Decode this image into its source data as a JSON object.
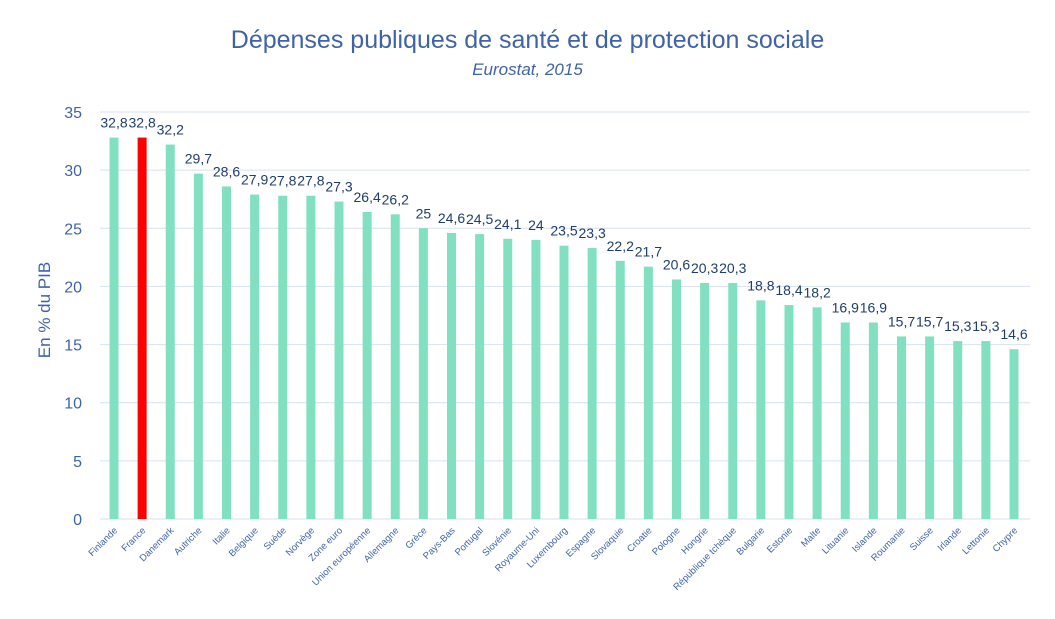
{
  "chart_data": {
    "type": "bar",
    "title": "Dépenses publiques de santé et de protection sociale",
    "subtitle": "Eurostat, 2015",
    "xlabel": "",
    "ylabel": "En % du PIB",
    "ylim": [
      0,
      35
    ],
    "yticks": [
      0,
      5,
      10,
      15,
      20,
      25,
      30,
      35
    ],
    "grid": true,
    "categories": [
      "Finlande",
      "France",
      "Danemark",
      "Autriche",
      "Italie",
      "Belgique",
      "Suède",
      "Norvège",
      "Zone euro",
      "Union européenne",
      "Allemagne",
      "Grèce",
      "Pays-Bas",
      "Portugal",
      "Slovénie",
      "Royaume-Uni",
      "Luxembourg",
      "Espagne",
      "Slovaquie",
      "Croatie",
      "Pologne",
      "Hongrie",
      "République tchèque",
      "Bulgarie",
      "Estonie",
      "Malte",
      "Lituanie",
      "Islande",
      "Roumanie",
      "Suisse",
      "Irlande",
      "Lettonie",
      "Chypre"
    ],
    "values": [
      32.8,
      32.8,
      32.2,
      29.7,
      28.6,
      27.9,
      27.8,
      27.8,
      27.3,
      26.4,
      26.2,
      25,
      24.6,
      24.5,
      24.1,
      24,
      23.5,
      23.3,
      22.2,
      21.7,
      20.6,
      20.3,
      20.3,
      18.8,
      18.4,
      18.2,
      16.9,
      16.9,
      15.7,
      15.7,
      15.3,
      15.3,
      14.6
    ],
    "data_labels": [
      "32,8",
      "32,8",
      "32,2",
      "29,7",
      "28,6",
      "27,9",
      "27,8",
      "27,8",
      "27,3",
      "26,4",
      "26,2",
      "25",
      "24,6",
      "24,5",
      "24,1",
      "24",
      "23,5",
      "23,3",
      "22,2",
      "21,7",
      "20,6",
      "20,3",
      "20,3",
      "18,8",
      "18,4",
      "18,2",
      "16,9",
      "16,9",
      "15,7",
      "15,7",
      "15,3",
      "15,3",
      "14,6"
    ],
    "highlight": "France",
    "colors": {
      "bar": "#80e0c0",
      "highlight": "#ff0000",
      "grid": "#d6e2ee",
      "text": "#3f64a6",
      "label": "#1f3d6b"
    }
  }
}
